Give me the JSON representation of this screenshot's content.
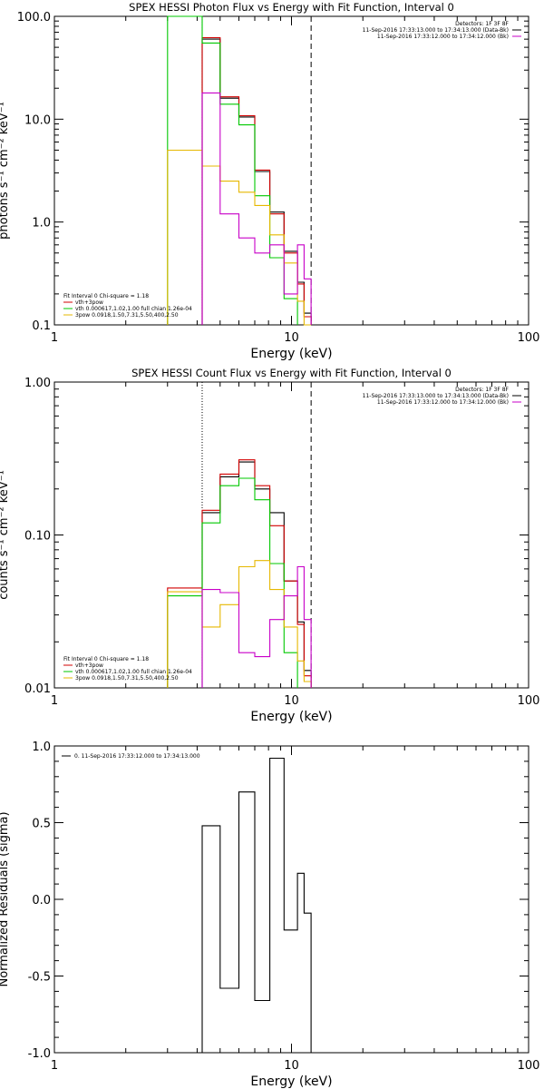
{
  "colors": {
    "black": "#000000",
    "red": "#d20000",
    "green": "#00c800",
    "yellow": "#e6b800",
    "magenta": "#c800c8"
  },
  "chart_data": [
    {
      "type": "line",
      "title": "SPEX HESSI Photon Flux vs Energy with Fit Function, Interval 0",
      "xlabel": "Energy (keV)",
      "ylabel": "photons s⁻¹ cm⁻² keV⁻¹",
      "xscale": "log",
      "yscale": "log",
      "xlim": [
        1,
        100
      ],
      "ylim": [
        0.1,
        100
      ],
      "xticks": [
        {
          "v": 1,
          "label": "1"
        },
        {
          "v": 10,
          "label": "10"
        },
        {
          "v": 100,
          "label": "100"
        }
      ],
      "yticks": [
        {
          "v": 0.1,
          "label": "0.1"
        },
        {
          "v": 1,
          "label": "1.0"
        },
        {
          "v": 10,
          "label": "10.0"
        },
        {
          "v": 100,
          "label": "100.0"
        }
      ],
      "vlines": [
        {
          "x": 4.2,
          "style": "dotted"
        },
        {
          "x": 12.1,
          "style": "dashed"
        }
      ],
      "legend_top": [
        "Detectors: 1F 3F 8F",
        "11-Sep-2016 17:33:13.000 to 17:34:13.000 (Data-Bk)",
        "11-Sep-2016 17:33:12.000 to 17:34:12.000 (Bk)"
      ],
      "legend_bottom": [
        "Fit Interval 0   Chi-square = 1.18",
        "vth+3pow",
        "vth 0.000617,1.02,1.00  full chian 1.26e-04",
        "3pow 0.0918,1.50,7.31,5.50,400,2.50"
      ],
      "edges": [
        3.0,
        4.2,
        5.0,
        6.0,
        7.0,
        8.1,
        9.3,
        10.6,
        11.3,
        12.1
      ],
      "series": [
        {
          "name": "11-Sep-2016 17:33:13.000 to 17:34:13.000 (Data-Bk)",
          "color": "black",
          "edges": [
            4.2,
            5.0,
            6.0,
            7.0,
            8.1,
            9.3,
            10.6,
            11.3,
            12.1
          ],
          "values": [
            60,
            16,
            10.5,
            3.1,
            1.25,
            0.52,
            0.26,
            0.13
          ]
        },
        {
          "name": "vth+3pow",
          "color": "red",
          "edges": [
            4.2,
            5.0,
            6.0,
            7.0,
            8.1,
            9.3,
            10.6,
            11.3,
            12.1
          ],
          "values": [
            62,
            16.5,
            10.8,
            3.2,
            1.2,
            0.5,
            0.25,
            0.12
          ]
        },
        {
          "name": "vth 0.000617,1.02,1.00  full chian 1.26e-04",
          "color": "green",
          "edges": [
            3.0,
            4.2,
            5.0,
            6.0,
            7.0,
            8.1,
            9.3,
            10.6
          ],
          "values": [
            1000,
            55,
            14,
            8.8,
            1.8,
            0.45,
            0.18
          ]
        },
        {
          "name": "3pow 0.0918,1.50,7.31,5.50,400,2.50",
          "color": "yellow",
          "edges": [
            3.0,
            4.2,
            5.0,
            6.0,
            7.0,
            8.1,
            9.3,
            10.6,
            11.3,
            12.1
          ],
          "values": [
            5.0,
            3.5,
            2.5,
            1.95,
            1.45,
            0.75,
            0.4,
            0.17,
            0.1
          ]
        },
        {
          "name": "11-Sep-2016 17:33:12.000 to 17:34:12.000 (Bk)",
          "color": "magenta",
          "edges": [
            4.2,
            5.0,
            6.0,
            7.0,
            8.1,
            9.3,
            10.6,
            11.3,
            12.1
          ],
          "values": [
            18,
            1.2,
            0.7,
            0.5,
            0.6,
            0.2,
            0.6,
            0.28
          ]
        }
      ]
    },
    {
      "type": "line",
      "title": "SPEX HESSI Count Flux vs Energy with Fit Function, Interval 0",
      "xlabel": "Energy (keV)",
      "ylabel": "counts s⁻¹ cm⁻² keV⁻¹",
      "xscale": "log",
      "yscale": "log",
      "xlim": [
        1,
        100
      ],
      "ylim": [
        0.01,
        1.0
      ],
      "xticks": [
        {
          "v": 1,
          "label": "1"
        },
        {
          "v": 10,
          "label": "10"
        },
        {
          "v": 100,
          "label": "100"
        }
      ],
      "yticks": [
        {
          "v": 0.01,
          "label": "0.01"
        },
        {
          "v": 0.1,
          "label": "0.10"
        },
        {
          "v": 1,
          "label": "1.00"
        }
      ],
      "vlines": [
        {
          "x": 4.2,
          "style": "dotted"
        },
        {
          "x": 12.1,
          "style": "dashed"
        }
      ],
      "legend_top": [
        "Detectors: 1F 3F 8F",
        "11-Sep-2016 17:33:13.000 to 17:34:13.000 (Data-Bk)",
        "11-Sep-2016 17:33:12.000 to 17:34:12.000 (Bk)"
      ],
      "legend_bottom": [
        "Fit Interval 0   Chi-square = 1.18",
        "vth+3pow",
        "vth 0.000617,1.02,1.00  full chian 1.26e-04",
        "3pow 0.0918,1.50,7.31,5.50,400,2.50"
      ],
      "series": [
        {
          "name": "11-Sep-2016 17:33:13.000 to 17:34:13.000 (Data-Bk)",
          "color": "black",
          "edges": [
            4.2,
            5.0,
            6.0,
            7.0,
            8.1,
            9.3,
            10.6,
            11.3,
            12.1
          ],
          "values": [
            0.14,
            0.24,
            0.3,
            0.2,
            0.14,
            0.05,
            0.027,
            0.013
          ]
        },
        {
          "name": "vth+3pow",
          "color": "red",
          "edges": [
            3.0,
            4.2,
            5.0,
            6.0,
            7.0,
            8.1,
            9.3,
            10.6,
            11.3,
            12.1
          ],
          "values": [
            0.045,
            0.145,
            0.25,
            0.31,
            0.21,
            0.115,
            0.05,
            0.026,
            0.012
          ]
        },
        {
          "name": "vth 0.000617,1.02,1.00  full chian 1.26e-04",
          "color": "green",
          "edges": [
            3.0,
            4.2,
            5.0,
            6.0,
            7.0,
            8.1,
            9.3,
            10.6
          ],
          "values": [
            0.04,
            0.12,
            0.21,
            0.235,
            0.17,
            0.065,
            0.017
          ]
        },
        {
          "name": "3pow 0.0918,1.50,7.31,5.50,400,2.50",
          "color": "yellow",
          "edges": [
            3.0,
            4.2,
            5.0,
            6.0,
            7.0,
            8.1,
            9.3,
            10.6,
            11.3,
            12.1
          ],
          "values": [
            0.0425,
            0.025,
            0.035,
            0.062,
            0.068,
            0.044,
            0.025,
            0.015,
            0.011
          ]
        },
        {
          "name": "11-Sep-2016 17:33:12.000 to 17:34:12.000 (Bk)",
          "color": "magenta",
          "edges": [
            4.2,
            5.0,
            6.0,
            7.0,
            8.1,
            9.3,
            10.6,
            11.3,
            12.1
          ],
          "values": [
            0.044,
            0.042,
            0.017,
            0.016,
            0.028,
            0.04,
            0.062,
            0.028
          ]
        }
      ]
    },
    {
      "type": "line",
      "title": "",
      "xlabel": "Energy (keV)",
      "ylabel": "Normalized Residuals (sigma)",
      "xscale": "log",
      "yscale": "linear",
      "xlim": [
        1,
        100
      ],
      "ylim": [
        -1.0,
        1.0
      ],
      "xticks": [
        {
          "v": 1,
          "label": "1"
        },
        {
          "v": 10,
          "label": "10"
        },
        {
          "v": 100,
          "label": "100"
        }
      ],
      "yticks": [
        {
          "v": -1,
          "label": "-1.0"
        },
        {
          "v": -0.5,
          "label": "-0.5"
        },
        {
          "v": 0,
          "label": "0.0"
        },
        {
          "v": 0.5,
          "label": "0.5"
        },
        {
          "v": 1,
          "label": "1.0"
        }
      ],
      "legend_top": [
        "0. 11-Sep-2016 17:33:12.000 to 17:34:13.000"
      ],
      "series": [
        {
          "name": "0. 11-Sep-2016 17:33:12.000 to 17:34:13.000",
          "color": "black",
          "edges": [
            4.2,
            5.0,
            6.0,
            7.0,
            8.1,
            9.3,
            10.6,
            11.3,
            12.1
          ],
          "values": [
            0.48,
            -0.58,
            0.7,
            -0.66,
            0.92,
            -0.2,
            0.17,
            -0.09
          ]
        }
      ]
    }
  ]
}
